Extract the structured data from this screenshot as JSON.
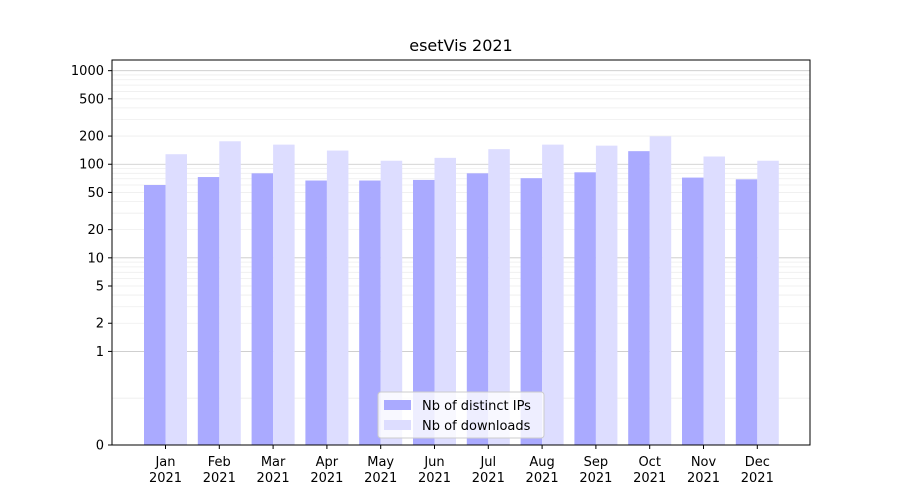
{
  "chart_data": {
    "type": "bar",
    "title": "esetVis 2021",
    "xlabel": "",
    "ylabel": "",
    "yscale": "symlog",
    "ylim": [
      0,
      1300
    ],
    "yticks": [
      0,
      1,
      2,
      5,
      10,
      20,
      50,
      100,
      200,
      500,
      1000
    ],
    "ytick_labels": [
      "0",
      "1",
      "2",
      "5",
      "10",
      "20",
      "50",
      "100",
      "200",
      "500",
      "1000"
    ],
    "categories": [
      "Jan 2021",
      "Feb 2021",
      "Mar 2021",
      "Apr 2021",
      "May 2021",
      "Jun 2021",
      "Jul 2021",
      "Aug 2021",
      "Sep 2021",
      "Oct 2021",
      "Nov 2021",
      "Dec 2021"
    ],
    "category_lines": [
      [
        "Jan",
        "2021"
      ],
      [
        "Feb",
        "2021"
      ],
      [
        "Mar",
        "2021"
      ],
      [
        "Apr",
        "2021"
      ],
      [
        "May",
        "2021"
      ],
      [
        "Jun",
        "2021"
      ],
      [
        "Jul",
        "2021"
      ],
      [
        "Aug",
        "2021"
      ],
      [
        "Sep",
        "2021"
      ],
      [
        "Oct",
        "2021"
      ],
      [
        "Nov",
        "2021"
      ],
      [
        "Dec",
        "2021"
      ]
    ],
    "series": [
      {
        "name": "Nb of distinct IPs",
        "color": "#aaaaff",
        "values": [
          60,
          73,
          80,
          67,
          67,
          68,
          80,
          71,
          82,
          138,
          72,
          69
        ]
      },
      {
        "name": "Nb of downloads",
        "color": "#ddddff",
        "values": [
          128,
          176,
          162,
          140,
          109,
          117,
          145,
          162,
          158,
          199,
          121,
          109
        ]
      }
    ],
    "grid": true,
    "legend": "lower-center"
  }
}
